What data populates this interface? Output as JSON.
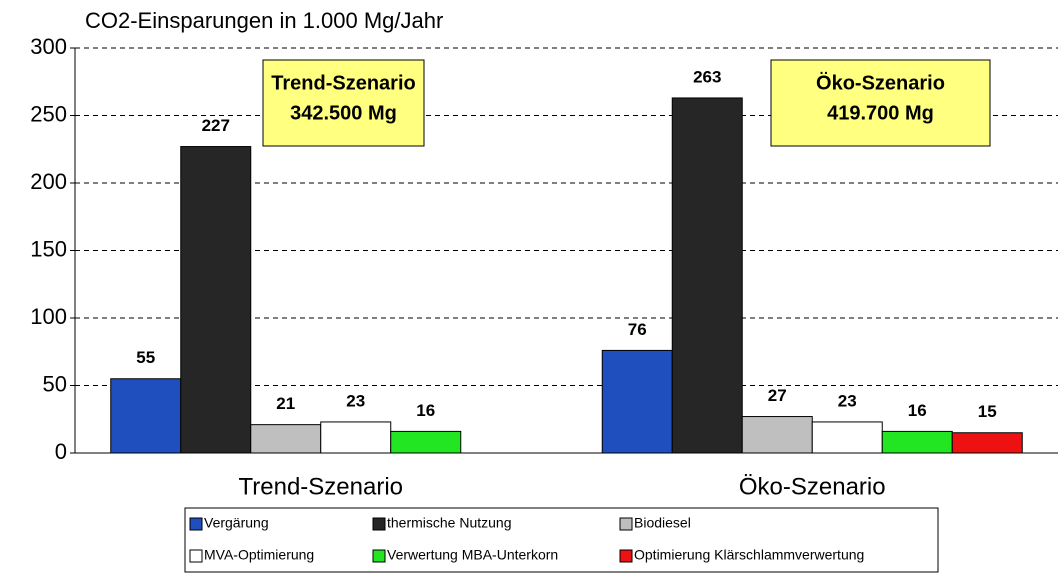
{
  "chart_data": {
    "type": "bar",
    "title": "CO2-Einsparungen in 1.000 Mg/Jahr",
    "categories": [
      "Trend-Szenario",
      "Öko-Szenario"
    ],
    "series": [
      {
        "name": "Vergärung",
        "color": "#1f4fbf",
        "values": [
          55,
          76
        ]
      },
      {
        "name": "thermische Nutzung",
        "color": "#262626",
        "values": [
          227,
          263
        ]
      },
      {
        "name": "Biodiesel",
        "color": "#bfbfbf",
        "values": [
          21,
          27
        ]
      },
      {
        "name": "MVA-Optimierung",
        "color": "#ffffff",
        "values": [
          23,
          23
        ]
      },
      {
        "name": "Verwertung MBA-Unterkorn",
        "color": "#22e622",
        "values": [
          16,
          16
        ]
      },
      {
        "name": "Optimierung Klärschlammverwertung",
        "color": "#ee1111",
        "values": [
          null,
          15
        ]
      }
    ],
    "annotations": [
      {
        "lines": [
          "Trend-Szenario",
          "342.500 Mg"
        ]
      },
      {
        "lines": [
          "Öko-Szenario",
          "419.700 Mg"
        ]
      }
    ],
    "ylim": [
      0,
      300
    ],
    "yticks": [
      0,
      50,
      100,
      150,
      200,
      250,
      300
    ],
    "grid": true
  }
}
